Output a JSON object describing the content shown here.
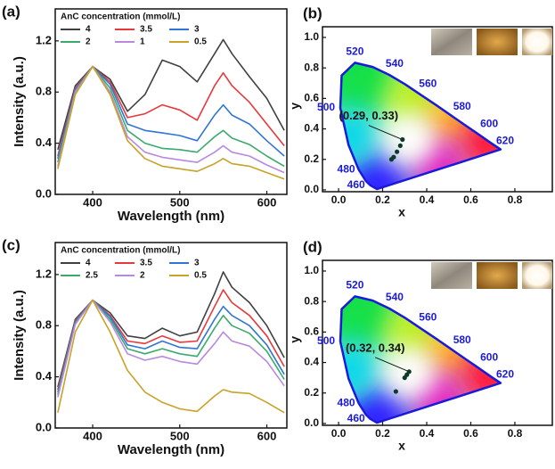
{
  "chart_data": [
    {
      "type": "line",
      "panel_label": "(a)",
      "legend_title": "AnC concentration (mmol/L)",
      "xlabel": "Wavelength (nm)",
      "ylabel": "Intensity (a.u.)",
      "x": [
        360,
        380,
        400,
        420,
        440,
        460,
        480,
        500,
        520,
        540,
        550,
        560,
        580,
        600,
        620
      ],
      "series": [
        {
          "name": "4",
          "color": "#404040",
          "values": [
            0.35,
            0.85,
            1.0,
            0.9,
            0.65,
            0.78,
            1.05,
            1.0,
            0.88,
            1.1,
            1.21,
            1.1,
            0.92,
            0.75,
            0.5
          ]
        },
        {
          "name": "3.5",
          "color": "#e8383b",
          "values": [
            0.3,
            0.83,
            1.0,
            0.88,
            0.6,
            0.63,
            0.7,
            0.66,
            0.58,
            0.85,
            0.95,
            0.85,
            0.72,
            0.55,
            0.38
          ]
        },
        {
          "name": "3",
          "color": "#2e75d4",
          "values": [
            0.28,
            0.82,
            1.0,
            0.86,
            0.55,
            0.5,
            0.48,
            0.46,
            0.42,
            0.62,
            0.7,
            0.62,
            0.55,
            0.42,
            0.3
          ]
        },
        {
          "name": "2",
          "color": "#3aaa6c",
          "values": [
            0.25,
            0.81,
            1.0,
            0.83,
            0.5,
            0.4,
            0.36,
            0.35,
            0.33,
            0.45,
            0.5,
            0.44,
            0.39,
            0.3,
            0.22
          ]
        },
        {
          "name": "1",
          "color": "#b889e0",
          "values": [
            0.22,
            0.8,
            1.0,
            0.8,
            0.45,
            0.33,
            0.29,
            0.27,
            0.25,
            0.33,
            0.38,
            0.33,
            0.3,
            0.23,
            0.17
          ]
        },
        {
          "name": "0.5",
          "color": "#c9a227",
          "values": [
            0.2,
            0.78,
            1.0,
            0.78,
            0.42,
            0.28,
            0.22,
            0.2,
            0.18,
            0.24,
            0.28,
            0.24,
            0.22,
            0.17,
            0.12
          ]
        }
      ],
      "xlim": [
        357,
        623
      ],
      "xticks": [
        400,
        500,
        600
      ],
      "ylim": [
        0,
        1.45
      ],
      "yticks": [
        {
          "value": 0,
          "label": "0.0"
        },
        0.4,
        0.8,
        1.2
      ]
    },
    {
      "type": "cie",
      "panel_label": "(b)",
      "xlabel": "x",
      "ylabel": "y",
      "annotation": "(0.29, 0.33)",
      "locus_labels": [
        "460",
        "480",
        "500",
        "520",
        "540",
        "560",
        "580",
        "600",
        "620"
      ],
      "x": [
        0.24,
        0.25,
        0.265,
        0.28,
        0.29
      ],
      "values": [
        0.2,
        0.215,
        0.25,
        0.29,
        0.33
      ],
      "color": "#0d3b2a",
      "xlim": [
        -0.073,
        0.97
      ],
      "xticks": [
        {
          "value": 0,
          "label": "0.0"
        },
        0.2,
        0.4,
        0.6,
        0.8
      ],
      "ylim": [
        -0.012,
        1.07
      ],
      "yticks": [
        {
          "value": 0,
          "label": "0.0"
        },
        0.2,
        0.4,
        0.6,
        0.8,
        {
          "value": 1,
          "label": "1.0"
        }
      ]
    },
    {
      "type": "line",
      "panel_label": "(c)",
      "legend_title": "AnC concentration (mmol/L)",
      "xlabel": "Wavelength (nm)",
      "ylabel": "Intensity (a.u.)",
      "x": [
        360,
        380,
        400,
        420,
        440,
        460,
        480,
        500,
        520,
        540,
        550,
        560,
        580,
        600,
        620
      ],
      "series": [
        {
          "name": "4",
          "color": "#404040",
          "values": [
            0.32,
            0.85,
            1.0,
            0.9,
            0.72,
            0.7,
            0.78,
            0.72,
            0.75,
            1.05,
            1.22,
            1.1,
            0.98,
            0.8,
            0.55
          ]
        },
        {
          "name": "3.5",
          "color": "#e8383b",
          "values": [
            0.3,
            0.84,
            1.0,
            0.88,
            0.68,
            0.66,
            0.72,
            0.67,
            0.68,
            0.95,
            1.08,
            0.98,
            0.88,
            0.72,
            0.48
          ]
        },
        {
          "name": "3",
          "color": "#2e75d4",
          "values": [
            0.28,
            0.83,
            1.0,
            0.87,
            0.65,
            0.62,
            0.68,
            0.63,
            0.62,
            0.85,
            0.95,
            0.88,
            0.8,
            0.65,
            0.42
          ]
        },
        {
          "name": "2.5",
          "color": "#3aaa6c",
          "values": [
            0.26,
            0.82,
            1.0,
            0.85,
            0.62,
            0.58,
            0.62,
            0.58,
            0.56,
            0.78,
            0.88,
            0.8,
            0.74,
            0.6,
            0.38
          ]
        },
        {
          "name": "2",
          "color": "#b889e0",
          "values": [
            0.24,
            0.81,
            1.0,
            0.83,
            0.58,
            0.53,
            0.56,
            0.52,
            0.5,
            0.66,
            0.75,
            0.68,
            0.64,
            0.52,
            0.33
          ]
        },
        {
          "name": "0.5",
          "color": "#c9a227",
          "values": [
            0.12,
            0.75,
            1.0,
            0.75,
            0.45,
            0.28,
            0.2,
            0.15,
            0.13,
            0.25,
            0.3,
            0.28,
            0.27,
            0.2,
            0.12
          ]
        }
      ],
      "xlim": [
        357,
        623
      ],
      "xticks": [
        400,
        500,
        600
      ],
      "ylim": [
        0,
        1.45
      ],
      "yticks": [
        {
          "value": 0,
          "label": "0.0"
        },
        0.4,
        0.8,
        1.2
      ]
    },
    {
      "type": "cie",
      "panel_label": "(d)",
      "xlabel": "x",
      "ylabel": "y",
      "annotation": "(0.32, 0.34)",
      "locus_labels": [
        "460",
        "480",
        "500",
        "520",
        "540",
        "560",
        "580",
        "600",
        "620"
      ],
      "x": [
        0.26,
        0.3,
        0.31,
        0.32
      ],
      "values": [
        0.21,
        0.3,
        0.32,
        0.34
      ],
      "color": "#0d3b2a",
      "xlim": [
        -0.073,
        0.97
      ],
      "xticks": [
        {
          "value": 0,
          "label": "0.0"
        },
        0.2,
        0.4,
        0.6,
        0.8
      ],
      "ylim": [
        -0.012,
        1.07
      ],
      "yticks": [
        {
          "value": 0,
          "label": "0.0"
        },
        0.2,
        0.4,
        0.6,
        0.8,
        {
          "value": 1,
          "label": "1.0"
        }
      ]
    }
  ]
}
